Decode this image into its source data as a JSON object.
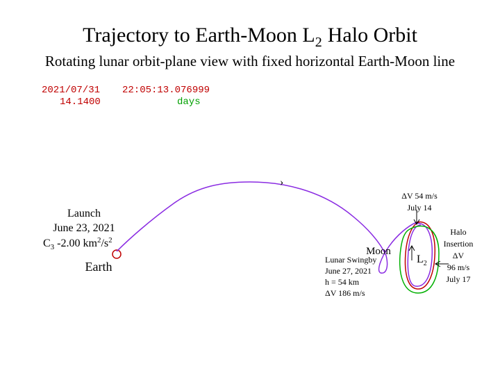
{
  "title": {
    "main": "Trajectory to Earth-Moon L",
    "sub": "2",
    "end": "Halo Orbit"
  },
  "subtitle": "Rotating lunar orbit-plane view with fixed horizontal Earth-Moon line",
  "clock": {
    "date": "2021/07/31",
    "time": "22:05:13.076999",
    "elapsed": "14.1400",
    "unit": "days"
  },
  "launch": {
    "lines": [
      "Launch",
      "June 23, 2021"
    ],
    "c3": {
      "symbol": "C",
      "sub": "3",
      "value": "-2.00 km",
      "sup1": "2",
      "per": "/s",
      "sup2": "2"
    }
  },
  "earth": "Earth",
  "moon": "Moon",
  "swingby": [
    "Lunar Swingby",
    "June 27, 2021",
    "h = 54 km",
    "ΔV 186 m/s"
  ],
  "correction": [
    "ΔV 54 m/s",
    "July 14"
  ],
  "l2": {
    "main": "L",
    "sub": "2"
  },
  "insertion": [
    "Halo",
    "Insertion",
    "ΔV",
    "96 m/s",
    "July 17"
  ]
}
